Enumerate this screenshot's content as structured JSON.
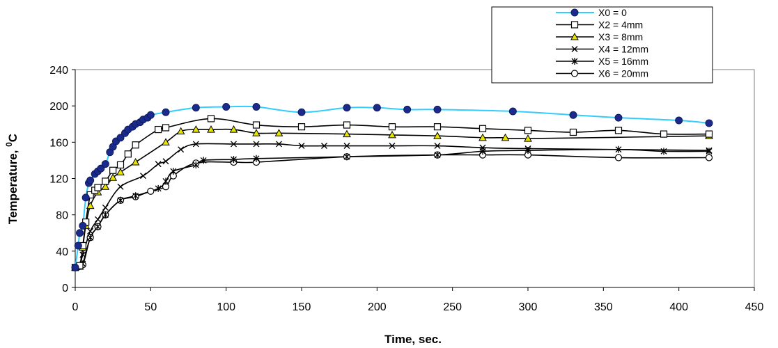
{
  "chart_data": {
    "type": "line",
    "title": "",
    "xlabel": "Time, sec.",
    "ylabel_main": "Temperature, ",
    "ylabel_sup": "0",
    "ylabel_unit": "C",
    "xlim": [
      0,
      450
    ],
    "ylim": [
      0,
      240
    ],
    "xticks": [
      0,
      50,
      100,
      150,
      200,
      250,
      300,
      350,
      400,
      450
    ],
    "yticks": [
      0,
      40,
      80,
      120,
      160,
      200,
      240
    ],
    "grid": false,
    "legend_position": "top-right",
    "series": [
      {
        "name": "X0 = 0",
        "color": "#33CCFF",
        "marker": "filled-circle",
        "marker_color": "#1A2B8C",
        "x": [
          0,
          2,
          3,
          5,
          7,
          9,
          10,
          13,
          15,
          17,
          20,
          23,
          25,
          27,
          30,
          33,
          35,
          38,
          40,
          43,
          45,
          48,
          50,
          60,
          80,
          100,
          120,
          150,
          180,
          200,
          220,
          240,
          290,
          330,
          360,
          400,
          420
        ],
        "y": [
          22,
          46,
          60,
          68,
          99,
          115,
          118,
          125,
          128,
          131,
          136,
          149,
          155,
          161,
          165,
          170,
          174,
          177,
          180,
          182,
          185,
          187,
          190,
          193,
          198,
          199,
          199,
          193,
          198,
          198,
          196,
          196,
          194,
          190,
          187,
          184,
          181
        ]
      },
      {
        "name": "X2 = 4mm",
        "color": "#000000",
        "marker": "open-square",
        "x": [
          0,
          3,
          5,
          7,
          10,
          13,
          15,
          20,
          25,
          30,
          35,
          40,
          55,
          60,
          90,
          120,
          150,
          180,
          210,
          240,
          270,
          300,
          330,
          360,
          390,
          420
        ],
        "y": [
          22,
          24,
          46,
          72,
          102,
          107,
          110,
          117,
          129,
          135,
          147,
          157,
          174,
          176,
          186,
          179,
          177,
          179,
          177,
          177,
          175,
          173,
          171,
          173,
          169,
          169
        ]
      },
      {
        "name": "X3 = 8mm",
        "color": "#000000",
        "marker": "triangle",
        "marker_color": "#E8E400",
        "x": [
          0,
          3,
          5,
          7,
          10,
          15,
          20,
          25,
          30,
          40,
          60,
          70,
          80,
          90,
          105,
          120,
          135,
          180,
          210,
          240,
          270,
          285,
          300,
          420
        ],
        "y": [
          22,
          23,
          44,
          68,
          90,
          105,
          111,
          121,
          127,
          138,
          160,
          172,
          174,
          174,
          174,
          170,
          170,
          169,
          168,
          167,
          165,
          165,
          164,
          167
        ]
      },
      {
        "name": "X4 = 12mm",
        "color": "#000000",
        "marker": "x",
        "x": [
          0,
          3,
          5,
          10,
          15,
          20,
          30,
          45,
          55,
          60,
          70,
          80,
          105,
          120,
          135,
          150,
          165,
          180,
          210,
          240,
          270,
          300,
          420
        ],
        "y": [
          22,
          24,
          36,
          62,
          75,
          88,
          111,
          123,
          136,
          139,
          152,
          158,
          158,
          158,
          158,
          156,
          156,
          156,
          156,
          156,
          154,
          153,
          151
        ]
      },
      {
        "name": "X5 = 16mm",
        "color": "#000000",
        "marker": "star",
        "x": [
          0,
          3,
          5,
          10,
          15,
          20,
          30,
          40,
          55,
          60,
          65,
          80,
          85,
          105,
          120,
          180,
          240,
          270,
          300,
          360,
          390,
          420
        ],
        "y": [
          22,
          23,
          26,
          55,
          67,
          80,
          96,
          101,
          109,
          117,
          128,
          135,
          140,
          141,
          142,
          144,
          146,
          150,
          151,
          152,
          150,
          150
        ]
      },
      {
        "name": "X6 = 20mm",
        "color": "#000000",
        "marker": "open-circle",
        "x": [
          0,
          5,
          10,
          15,
          20,
          30,
          40,
          50,
          60,
          65,
          80,
          105,
          120,
          180,
          240,
          270,
          300,
          360,
          420
        ],
        "y": [
          22,
          25,
          55,
          67,
          80,
          96,
          100,
          106,
          111,
          123,
          137,
          138,
          138,
          144,
          146,
          146,
          146,
          143,
          143
        ]
      }
    ]
  }
}
